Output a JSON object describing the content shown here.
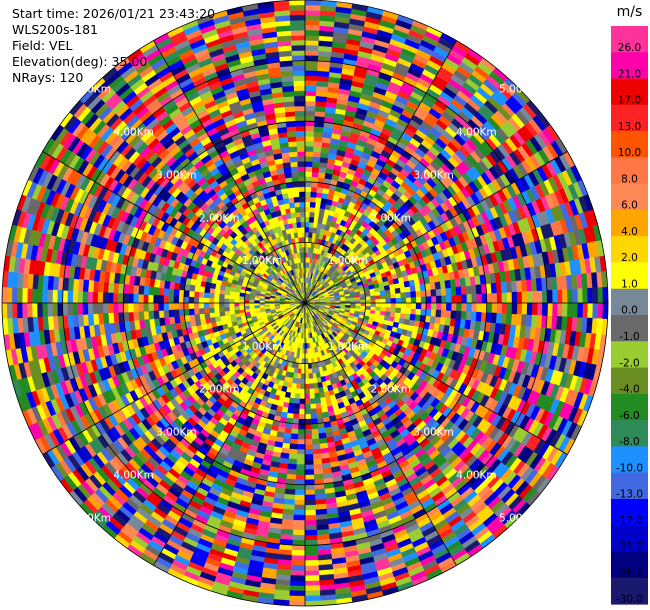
{
  "header": {
    "start_time": "Start time: 2026/01/21 23:43:20",
    "site": "WLS200s-181",
    "field": "Field: VEL",
    "elevation": "Elevation(deg): 35.00",
    "nrays": "NRays: 120"
  },
  "chart_data": {
    "type": "heatmap",
    "subtype": "polar-ppi",
    "field": "VEL",
    "nrays": 120,
    "range_rings_km": [
      "1.00Km",
      "2.00Km",
      "3.00Km",
      "4.00Km",
      "5.00Km"
    ],
    "colorbar": {
      "unit": "m/s",
      "ticks": [
        "26.0",
        "21.0",
        "17.0",
        "13.0",
        "10.0",
        "8.0",
        "6.0",
        "4.0",
        "2.0",
        "1.0",
        "0.0",
        "-1.0",
        "-2.0",
        "-4.0",
        "-6.0",
        "-8.0",
        "-10.0",
        "-13.0",
        "-17.0",
        "-21.0",
        "-26.0",
        "-30.0"
      ],
      "colors": [
        "#ff3399",
        "#ff00aa",
        "#ee0000",
        "#ff2222",
        "#ff5500",
        "#ff7744",
        "#ff8855",
        "#ffa500",
        "#ffd700",
        "#ffff00",
        "#778899",
        "#696969",
        "#9acd32",
        "#6b8e23",
        "#228b22",
        "#2e8b57",
        "#1e90ff",
        "#4169e1",
        "#0000ff",
        "#0000cd",
        "#000080",
        "#191970"
      ]
    }
  }
}
